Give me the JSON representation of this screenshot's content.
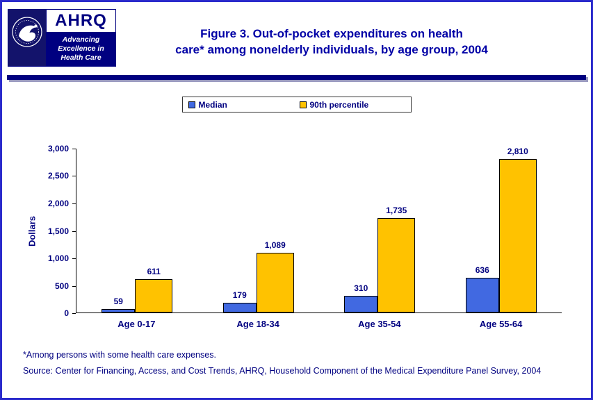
{
  "page": {
    "background": "#ffffff",
    "border_color": "#2b2bcc",
    "brand_navy": "#000080"
  },
  "header": {
    "ahrq_logo": {
      "acronym": "AHRQ",
      "tagline_lines": [
        "Advancing",
        "Excellence in",
        "Health Care"
      ]
    },
    "title_lines": [
      "Figure 3. Out-of-pocket expenditures on health",
      "care* among nonelderly individuals, by age group, 2004"
    ]
  },
  "legend": {
    "items": [
      {
        "label": "Median",
        "color": "#4169E1"
      },
      {
        "label": "90th percentile",
        "color": "#FFC200"
      }
    ]
  },
  "chart_data": {
    "type": "bar",
    "title": "Figure 3. Out-of-pocket expenditures on health care* among nonelderly individuals, by age group, 2004",
    "categories": [
      "Age 0-17",
      "Age 18-34",
      "Age 35-54",
      "Age 55-64"
    ],
    "series": [
      {
        "name": "Median",
        "color": "#4169E1",
        "values": [
          59,
          179,
          310,
          636
        ],
        "labels": [
          "59",
          "179",
          "310",
          "636"
        ]
      },
      {
        "name": "90th percentile",
        "color": "#FFC200",
        "values": [
          611,
          1089,
          1735,
          2810
        ],
        "labels": [
          "611",
          "1,089",
          "1,735",
          "2,810"
        ]
      }
    ],
    "xlabel": "",
    "ylabel": "Dollars",
    "ylim": [
      0,
      3000
    ],
    "ytick_step": 500,
    "yticks_top_to_bottom": [
      "3,000",
      "2,500",
      "2,000",
      "1,500",
      "1,000",
      "500",
      "0"
    ],
    "grid": false,
    "legend_position": "top-center"
  },
  "footnotes": {
    "note": "*Among persons with some health care expenses.",
    "source": "Source: Center for Financing, Access, and Cost Trends, AHRQ, Household Component of the Medical Expenditure Panel Survey, 2004"
  }
}
